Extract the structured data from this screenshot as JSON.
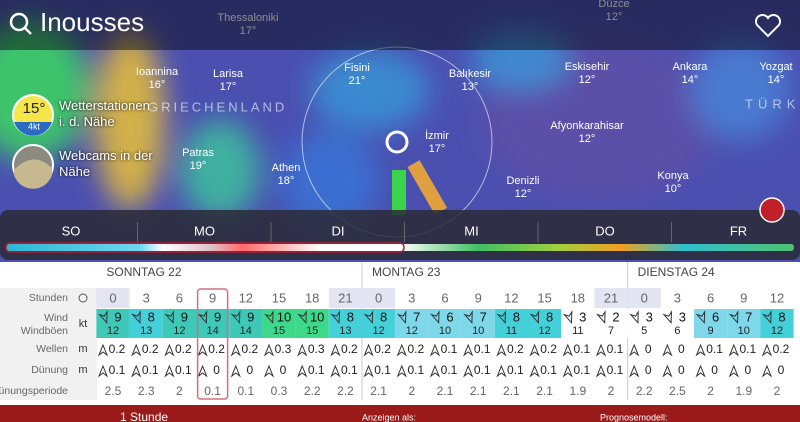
{
  "header": {
    "title": "Inousses"
  },
  "map": {
    "labels": [
      {
        "name": "Thessaloniki",
        "temp": "17°"
      },
      {
        "name": "Düzce",
        "temp": "12°"
      },
      {
        "name": "Ioannina",
        "temp": "16°"
      },
      {
        "name": "Larisa",
        "temp": "17°"
      },
      {
        "name": "Fisini",
        "temp": "21°"
      },
      {
        "name": "Balıkesir",
        "temp": "13°"
      },
      {
        "name": "Eskisehir",
        "temp": "12°"
      },
      {
        "name": "Ankara",
        "temp": "14°"
      },
      {
        "name": "Yozgat",
        "temp": "14°"
      },
      {
        "name": "Patras",
        "temp": "19°"
      },
      {
        "name": "Athen",
        "temp": "18°"
      },
      {
        "name": "İzmir",
        "temp": "17°"
      },
      {
        "name": "Afyonkarahisar",
        "temp": "12°"
      },
      {
        "name": "Denizli",
        "temp": "12°"
      },
      {
        "name": "Konya",
        "temp": "10°"
      }
    ],
    "country_labels": [
      "GRIECHENLAND",
      "TÜRK"
    ]
  },
  "side": {
    "station_temp": "15°",
    "station_wind": "4kt",
    "station_text": "Wetterstationen i. d. Nähe",
    "webcam_text": "Webcams in der Nähe"
  },
  "timeline": {
    "days": [
      "SO",
      "MO",
      "DI",
      "MI",
      "DO",
      "FR"
    ]
  },
  "forecast": {
    "days": [
      "SONNTAG 22",
      "MONTAG 23",
      "DIENSTAG 24"
    ],
    "row_labels": [
      "Stunden",
      "Wind",
      "Windböen",
      "Wellen",
      "Dünung",
      "Dünungsperiode"
    ],
    "units": [
      "kt",
      "m",
      "m"
    ],
    "hours": [
      0,
      3,
      6,
      9,
      12,
      15,
      18,
      21,
      0,
      3,
      6,
      9,
      12,
      15,
      18,
      21,
      0,
      3,
      6,
      9,
      12
    ],
    "wind": [
      9,
      8,
      9,
      9,
      9,
      10,
      10,
      8,
      8,
      7,
      6,
      7,
      8,
      8,
      3,
      2,
      3,
      3,
      6,
      7,
      8
    ],
    "gusts": [
      12,
      13,
      12,
      14,
      14,
      15,
      15,
      13,
      12,
      12,
      10,
      10,
      11,
      12,
      11,
      7,
      5,
      6,
      9,
      10,
      12
    ],
    "waves": [
      0.2,
      0.2,
      0.2,
      0.2,
      0.2,
      0.3,
      0.3,
      0.2,
      0.2,
      0.2,
      0.1,
      0.1,
      0.2,
      0.2,
      0.1,
      0.1,
      0,
      0,
      0.1,
      0.1,
      0.2
    ],
    "swell": [
      0.1,
      0.1,
      0.1,
      0,
      0,
      0,
      0.1,
      0.1,
      0.1,
      0.1,
      0.1,
      0.1,
      0.1,
      0.1,
      0.1,
      0.1,
      0,
      0,
      0,
      0,
      0
    ],
    "period": [
      2.5,
      2.3,
      2,
      0.1,
      0.1,
      0.3,
      2.2,
      2.2,
      2.1,
      2,
      2.1,
      2.1,
      2.1,
      2.1,
      1.9,
      2,
      2.2,
      2.5,
      2,
      1.9,
      2
    ]
  },
  "footer": {
    "items": [
      "1 Stunde",
      "Anzeigen als:",
      "Prognosemodell:"
    ]
  }
}
